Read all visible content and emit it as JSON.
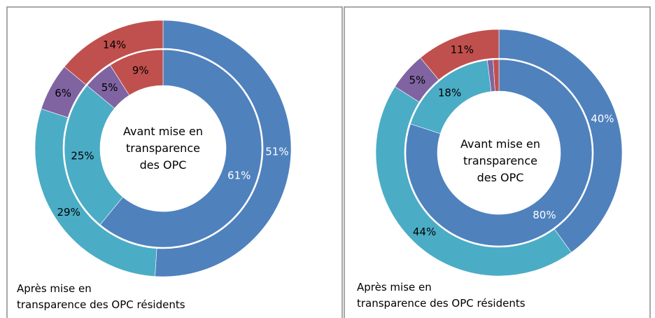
{
  "chart_data": [
    {
      "type": "donut",
      "center_text": "Avant mise en\ntransparence\ndes OPC",
      "caption": "Après mise en\ntransparence des OPC résidents",
      "colors": [
        "#4f81bd",
        "#4bacc6",
        "#8064a2",
        "#c0504d"
      ],
      "series": [
        {
          "values": [
            61,
            25,
            5,
            9
          ],
          "value_labels": [
            "61%",
            "25%",
            "5%",
            "9%"
          ]
        },
        {
          "values": [
            51,
            29,
            6,
            14
          ],
          "value_labels": [
            "51%",
            "29%",
            "6%",
            "14%"
          ]
        }
      ]
    },
    {
      "type": "donut",
      "center_text": "Avant mise en\ntransparence\ndes OPC",
      "caption": "Après mise en\ntransparence des OPC résidents",
      "colors": [
        "#4f81bd",
        "#4bacc6",
        "#8064a2",
        "#c0504d"
      ],
      "series": [
        {
          "values": [
            80,
            18,
            1,
            1
          ],
          "value_labels": [
            "80%",
            "18%",
            null,
            null
          ]
        },
        {
          "values": [
            40,
            44,
            5,
            11
          ],
          "value_labels": [
            "40%",
            "44%",
            "5%",
            "11%"
          ]
        }
      ]
    }
  ]
}
